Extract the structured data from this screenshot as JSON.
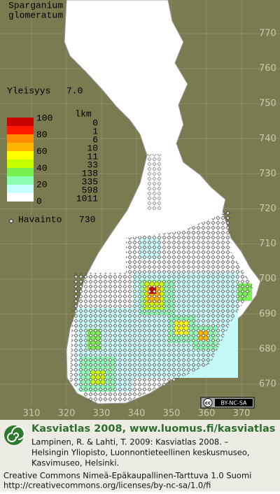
{
  "title": {
    "lines": [
      "Sparganium",
      "glomeratum"
    ]
  },
  "frequency": {
    "label": "Yleisyys",
    "value": "7.0"
  },
  "legend": {
    "scale_labels": [
      "100",
      "80",
      "60",
      "40",
      "20",
      "0"
    ],
    "count_header": "lkm",
    "bands": [
      {
        "color": "#c80000",
        "count": "0"
      },
      {
        "color": "#ff1a00",
        "count": "1"
      },
      {
        "color": "#ff8c00",
        "count": "6"
      },
      {
        "color": "#ffb400",
        "count": "10"
      },
      {
        "color": "#ffff00",
        "count": "11"
      },
      {
        "color": "#c8ff00",
        "count": "33"
      },
      {
        "color": "#78f050",
        "count": "138"
      },
      {
        "color": "#8cffb4",
        "count": "335"
      },
      {
        "color": "#c8ffff",
        "count": "598"
      },
      {
        "color": "#ffffff",
        "count": "1011"
      }
    ]
  },
  "observations": {
    "label": "Havainto",
    "count": "730"
  },
  "grid": {
    "y_labels": [
      "770",
      "760",
      "750",
      "740",
      "730",
      "720",
      "710",
      "700",
      "690",
      "680",
      "670"
    ],
    "x_labels": [
      "310",
      "320",
      "330",
      "340",
      "350",
      "360",
      "370"
    ]
  },
  "license_badge": "BY-NC-SA",
  "footer": {
    "heading": "Kasviatlas 2008, www.luomus.fi/kasviatlas",
    "citation": [
      "Lampinen, R. & Lahti, T. 2009: Kasviatlas 2008. –",
      "Helsingin Yliopisto, Luonnontieteellinen keskusmuseo,",
      "Kasvimuseo, Helsinki."
    ],
    "license": [
      "Creative Commons Nimeä-Epäkaupallinen-Tarttuva 1.0 Suomi",
      "http://creativecommons.org/licenses/by-nc-sa/1.0/fi"
    ]
  }
}
